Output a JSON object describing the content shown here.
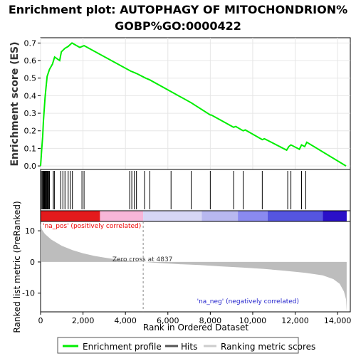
{
  "chart_data": {
    "type": "line",
    "title_line1": "Enrichment plot: AUTOPHAGY OF MITOCHONDRION%",
    "title_line2": "GOBP%GO:0000422",
    "es_ylabel": "Enrichment score (ES)",
    "rank_ylabel": "Ranked list metric (PreRanked)",
    "xlabel": "Rank in Ordered Dataset",
    "xlim": [
      0,
      14600
    ],
    "es_ylim": [
      -0.02,
      0.73
    ],
    "rank_ylim": [
      -16,
      13
    ],
    "x_ticks": [
      {
        "v": 0,
        "label": "0"
      },
      {
        "v": 2000,
        "label": "2,000"
      },
      {
        "v": 4000,
        "label": "4,000"
      },
      {
        "v": 6000,
        "label": "6,000"
      },
      {
        "v": 8000,
        "label": "8,000"
      },
      {
        "v": 10000,
        "label": "10,000"
      },
      {
        "v": 12000,
        "label": "12,000"
      },
      {
        "v": 14000,
        "label": "14,000"
      }
    ],
    "es_ticks": [
      {
        "v": 0.0,
        "label": "0.0"
      },
      {
        "v": 0.1,
        "label": "0.1"
      },
      {
        "v": 0.2,
        "label": "0.2"
      },
      {
        "v": 0.3,
        "label": "0.3"
      },
      {
        "v": 0.4,
        "label": "0.4"
      },
      {
        "v": 0.5,
        "label": "0.5"
      },
      {
        "v": 0.6,
        "label": "0.6"
      },
      {
        "v": 0.7,
        "label": "0.7"
      }
    ],
    "rank_ticks": [
      {
        "v": 10,
        "label": "10"
      },
      {
        "v": 0,
        "label": "0"
      },
      {
        "v": -10,
        "label": "-10"
      }
    ],
    "enrichment_profile": [
      [
        0,
        0.0
      ],
      [
        50,
        0.09
      ],
      [
        100,
        0.17
      ],
      [
        130,
        0.25
      ],
      [
        170,
        0.32
      ],
      [
        210,
        0.39
      ],
      [
        260,
        0.45
      ],
      [
        310,
        0.51
      ],
      [
        420,
        0.55
      ],
      [
        560,
        0.58
      ],
      [
        660,
        0.62
      ],
      [
        900,
        0.6
      ],
      [
        980,
        0.65
      ],
      [
        1150,
        0.67
      ],
      [
        1300,
        0.68
      ],
      [
        1480,
        0.7
      ],
      [
        1850,
        0.675
      ],
      [
        2050,
        0.685
      ],
      [
        4250,
        0.54
      ],
      [
        4350,
        0.535
      ],
      [
        4450,
        0.53
      ],
      [
        4550,
        0.525
      ],
      [
        4950,
        0.5
      ],
      [
        5150,
        0.49
      ],
      [
        6200,
        0.42
      ],
      [
        7100,
        0.36
      ],
      [
        8000,
        0.29
      ],
      [
        8050,
        0.29
      ],
      [
        9100,
        0.22
      ],
      [
        9200,
        0.225
      ],
      [
        9550,
        0.2
      ],
      [
        9650,
        0.205
      ],
      [
        10450,
        0.15
      ],
      [
        10550,
        0.155
      ],
      [
        11600,
        0.09
      ],
      [
        11700,
        0.11
      ],
      [
        11800,
        0.12
      ],
      [
        12200,
        0.095
      ],
      [
        12300,
        0.12
      ],
      [
        12450,
        0.11
      ],
      [
        12550,
        0.135
      ],
      [
        14400,
        0.0
      ]
    ],
    "hits": [
      40,
      90,
      120,
      150,
      180,
      200,
      230,
      260,
      290,
      320,
      350,
      380,
      420,
      600,
      650,
      950,
      1050,
      1150,
      1300,
      1400,
      1500,
      1950,
      2050,
      4200,
      4300,
      4420,
      4520,
      4900,
      5150,
      6150,
      7100,
      8000,
      9100,
      9550,
      10450,
      11650,
      11800,
      12300,
      12500
    ],
    "ranked_metric": [
      [
        0,
        12.5
      ],
      [
        50,
        10.5
      ],
      [
        200,
        9
      ],
      [
        500,
        7.2
      ],
      [
        1000,
        5.2
      ],
      [
        1500,
        3.8
      ],
      [
        2000,
        2.8
      ],
      [
        2500,
        2.0
      ],
      [
        3000,
        1.4
      ],
      [
        3500,
        0.9
      ],
      [
        4000,
        0.5
      ],
      [
        4500,
        0.2
      ],
      [
        4837,
        0.0
      ],
      [
        5500,
        -0.3
      ],
      [
        6500,
        -0.7
      ],
      [
        7500,
        -1.0
      ],
      [
        8500,
        -1.4
      ],
      [
        9500,
        -1.8
      ],
      [
        10500,
        -2.2
      ],
      [
        11500,
        -2.8
      ],
      [
        12500,
        -3.5
      ],
      [
        13300,
        -4.3
      ],
      [
        13800,
        -5.5
      ],
      [
        14100,
        -7.0
      ],
      [
        14300,
        -9.5
      ],
      [
        14400,
        -12.0
      ],
      [
        14430,
        -16.0
      ]
    ],
    "zero_cross_value": 4837,
    "zero_cross_label": "Zero cross at 4837",
    "pos_label": "'na_pos' (positively correlated)",
    "neg_label": "'na_neg' (negatively correlated)",
    "legend": [
      {
        "label": "Enrichment profile",
        "color": "#00ee00"
      },
      {
        "label": "Hits",
        "color": "#555555"
      },
      {
        "label": "Ranking metric scores",
        "color": "#cccccc"
      }
    ],
    "colors": {
      "profile": "#00ee00",
      "hits": "#000000",
      "metric_fill": "#bdbdbd",
      "pos_text": "#ee0000",
      "neg_text": "#2222cc",
      "zero_line": "#888888"
    },
    "heatmap_bands": [
      {
        "from": 0,
        "to": 2800,
        "color": "#e31a1c"
      },
      {
        "from": 2800,
        "to": 4837,
        "color": "#f7b6d8"
      },
      {
        "from": 4837,
        "to": 7600,
        "color": "#d6d6f5"
      },
      {
        "from": 7600,
        "to": 9300,
        "color": "#b8b8f0"
      },
      {
        "from": 9300,
        "to": 10700,
        "color": "#8a8af0"
      },
      {
        "from": 10700,
        "to": 13300,
        "color": "#5555e0"
      },
      {
        "from": 13300,
        "to": 14430,
        "color": "#2a10c8"
      }
    ]
  }
}
